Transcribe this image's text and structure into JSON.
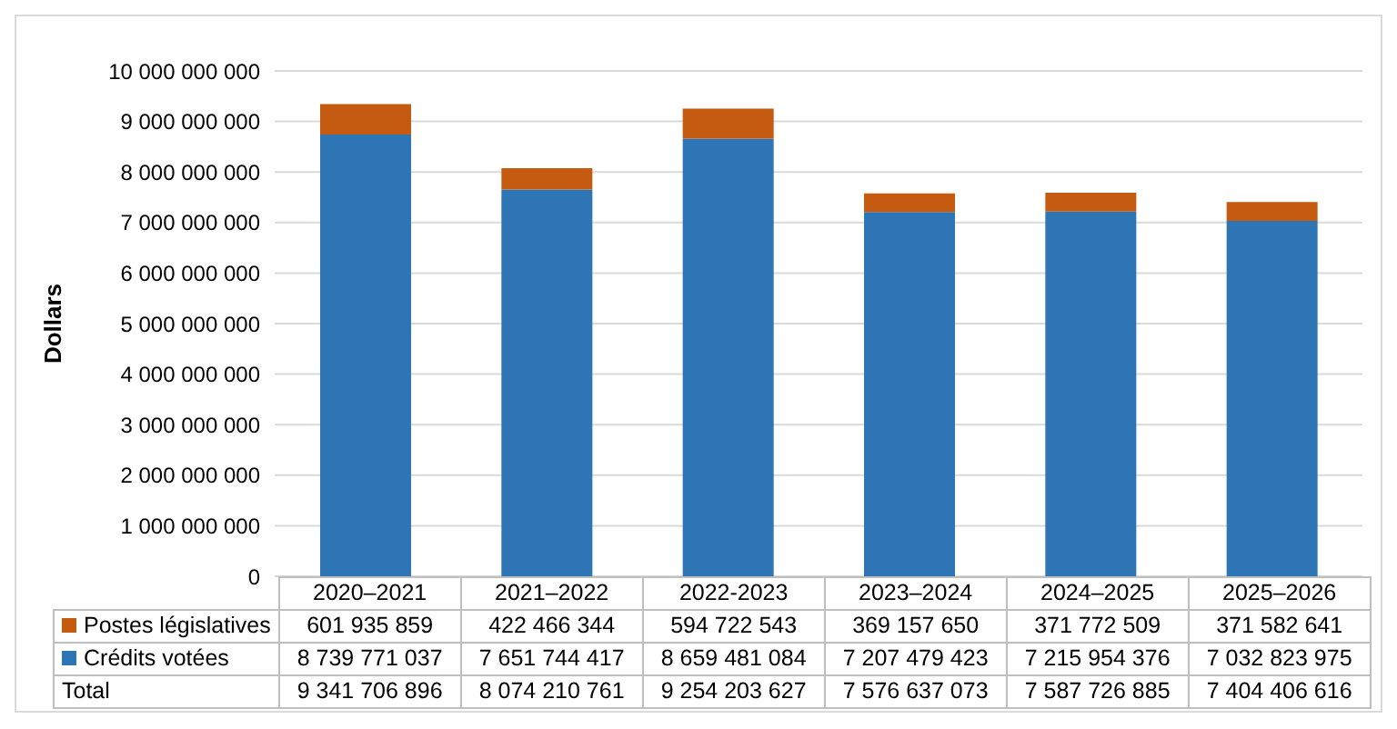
{
  "chart_data": {
    "type": "bar",
    "stacked": true,
    "categories": [
      "2020–2021",
      "2021–2022",
      "2022-2023",
      "2023–2024",
      "2024–2025",
      "2025–2026"
    ],
    "series": [
      {
        "name": "Crédits votées",
        "color": "#2e75b6",
        "values": [
          8739771037,
          7651744417,
          8659481084,
          7207479423,
          7215954376,
          7032823975
        ],
        "value_labels": [
          "8 739 771 037",
          "7 651 744 417",
          "8 659 481 084",
          "7 207 479 423",
          "7 215 954 376",
          "7 032 823 975"
        ]
      },
      {
        "name": "Postes législatives",
        "color": "#c55a11",
        "values": [
          601935859,
          422466344,
          594722543,
          369157650,
          371772509,
          371582641
        ],
        "value_labels": [
          "601 935 859",
          "422 466 344",
          "594 722 543",
          "369 157 650",
          "371 772 509",
          "371 582 641"
        ]
      }
    ],
    "annotations": [
      "Total",
      "9 341 706 896",
      "8 074 210 761",
      "9 254 203 627",
      "7 576 637 073",
      "7 587 726 885",
      "7 404 406 616"
    ],
    "ylabel": "Dollars",
    "ylim": [
      0,
      10000000000
    ],
    "yticks": [
      0,
      {
        "value": 1000000000,
        "label": "1 000 000 000"
      },
      {
        "value": 2000000000,
        "label": "2 000 000 000"
      },
      {
        "value": 3000000000,
        "label": "3 000 000 000"
      },
      {
        "value": 4000000000,
        "label": "4 000 000 000"
      },
      {
        "value": 5000000000,
        "label": "5 000 000 000"
      },
      {
        "value": 6000000000,
        "label": "6 000 000 000"
      },
      {
        "value": 7000000000,
        "label": "7 000 000 000"
      },
      {
        "value": 8000000000,
        "label": "8 000 000 000"
      },
      {
        "value": 9000000000,
        "label": "9 000 000 000"
      },
      {
        "value": 10000000000,
        "label": "10 000 000 000"
      }
    ],
    "grid": "y",
    "legend": "bottom"
  }
}
